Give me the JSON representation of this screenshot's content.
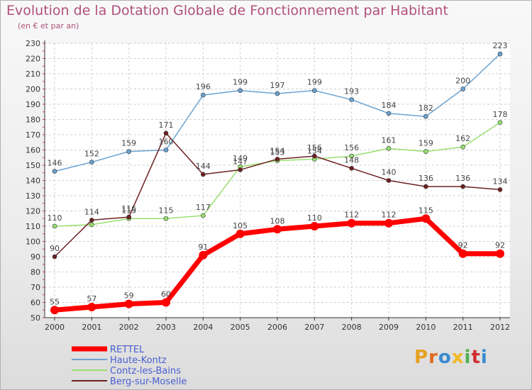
{
  "header": {
    "title": "Evolution de la Dotation Globale de Fonctionnement par Habitant",
    "subtitle": "(en € et par an)"
  },
  "brand": {
    "name": "Proxiti",
    "letters": [
      "P",
      "r",
      "o",
      "x",
      "i",
      "t",
      "i"
    ],
    "colors": [
      "#e8a020",
      "#e06a20",
      "#3a8ad0",
      "#f0b820",
      "#50b050",
      "#d03030",
      "#3a8ad0"
    ]
  },
  "chart_data": {
    "type": "line",
    "title": "Evolution de la Dotation Globale de Fonctionnement par Habitant",
    "subtitle": "(en € et par an)",
    "xlabel": "",
    "ylabel": "",
    "categories": [
      "2000",
      "2001",
      "2002",
      "2003",
      "2004",
      "2005",
      "2006",
      "2007",
      "2008",
      "2009",
      "2010",
      "2011",
      "2012"
    ],
    "ylim": [
      50,
      230
    ],
    "yticks": [
      50,
      60,
      70,
      80,
      90,
      100,
      110,
      120,
      130,
      140,
      150,
      160,
      170,
      180,
      190,
      200,
      210,
      220,
      230
    ],
    "grid": true,
    "legend_position": "bottom-left",
    "series": [
      {
        "name": "RETTEL",
        "color": "#ff0000",
        "values": [
          55,
          57,
          59,
          60,
          91,
          105,
          108,
          110,
          112,
          112,
          115,
          92,
          92
        ],
        "labels": [
          "55",
          "57",
          "59",
          "60",
          "91",
          "105",
          "108",
          "110",
          "112",
          "112",
          "115",
          "92",
          "92"
        ]
      },
      {
        "name": "Haute-Kontz",
        "color": "#6aa2d2",
        "values": [
          146,
          152,
          159,
          160,
          196,
          199,
          197,
          199,
          193,
          184,
          182,
          200,
          223
        ],
        "labels": [
          "146",
          "152",
          "159",
          "160",
          "196",
          "199",
          "197",
          "199",
          "193",
          "184",
          "182",
          "200",
          "223"
        ]
      },
      {
        "name": "Contz-les-Bains",
        "color": "#98e070",
        "values": [
          110,
          111,
          115,
          115,
          117,
          149,
          153,
          154,
          156,
          161,
          159,
          162,
          178
        ],
        "labels": [
          "110",
          "",
          "115",
          "115",
          "117",
          "149",
          "153",
          "154",
          "156",
          "161",
          "159",
          "162",
          "178"
        ]
      },
      {
        "name": "Berg-sur-Moselle",
        "color": "#6e2020",
        "values": [
          90,
          114,
          116,
          171,
          144,
          147,
          154,
          156,
          148,
          140,
          136,
          136,
          134
        ],
        "labels": [
          "90",
          "114",
          "116",
          "171",
          "144",
          "147",
          "154",
          "156",
          "148",
          "140",
          "136",
          "136",
          "134"
        ]
      }
    ]
  }
}
